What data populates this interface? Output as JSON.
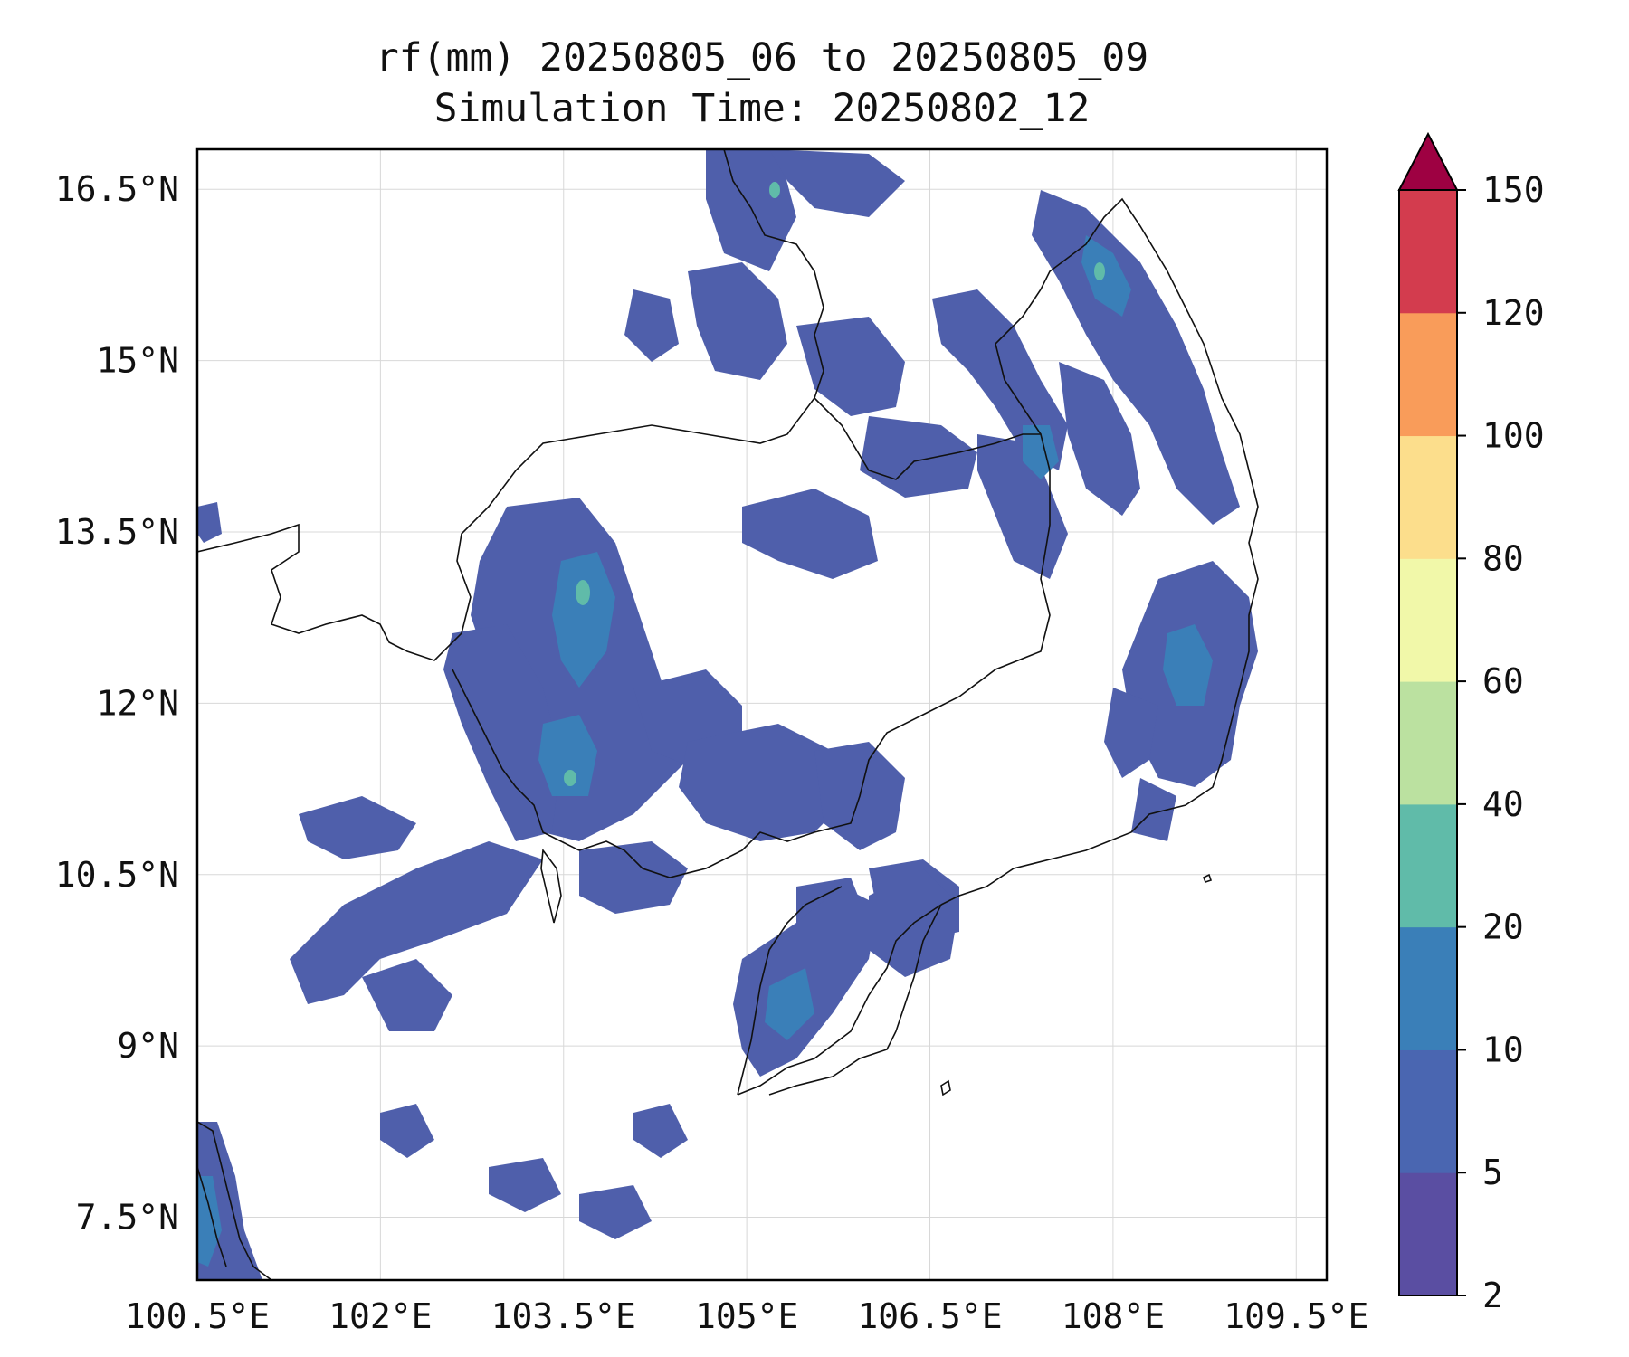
{
  "title": {
    "line1": "rf(mm) 20250805_06 to 20250805_09",
    "line2": "Simulation Time: 20250802_12"
  },
  "map": {
    "lon_range": [
      100.5,
      109.75
    ],
    "lat_range": [
      6.95,
      16.85
    ],
    "x_ticks": [
      {
        "value": 100.5,
        "label": "100.5°E"
      },
      {
        "value": 102.0,
        "label": "102°E"
      },
      {
        "value": 103.5,
        "label": "103.5°E"
      },
      {
        "value": 105.0,
        "label": "105°E"
      },
      {
        "value": 106.5,
        "label": "106.5°E"
      },
      {
        "value": 108.0,
        "label": "108°E"
      },
      {
        "value": 109.5,
        "label": "109.5°E"
      }
    ],
    "y_ticks": [
      {
        "value": 16.5,
        "label": "16.5°N"
      },
      {
        "value": 15.0,
        "label": "15°N"
      },
      {
        "value": 13.5,
        "label": "13.5°N"
      },
      {
        "value": 12.0,
        "label": "12°N"
      },
      {
        "value": 10.5,
        "label": "10.5°N"
      },
      {
        "value": 9.0,
        "label": "9°N"
      },
      {
        "value": 7.5,
        "label": "7.5°N"
      }
    ],
    "grid": true
  },
  "colorbar": {
    "levels": [
      2,
      5,
      10,
      20,
      40,
      60,
      80,
      100,
      120,
      150
    ],
    "labels": [
      "2",
      "5",
      "10",
      "20",
      "40",
      "60",
      "80",
      "100",
      "120",
      "150"
    ],
    "colors": [
      "#5a4ea2",
      "#4a66b1",
      "#3a7fb8",
      "#60bba9",
      "#bbe1a0",
      "#f1f8a9",
      "#fcde8c",
      "#f99c5a",
      "#d33c4e"
    ],
    "extend_color": "#9e0142",
    "extend": "max",
    "unit": "mm"
  }
}
